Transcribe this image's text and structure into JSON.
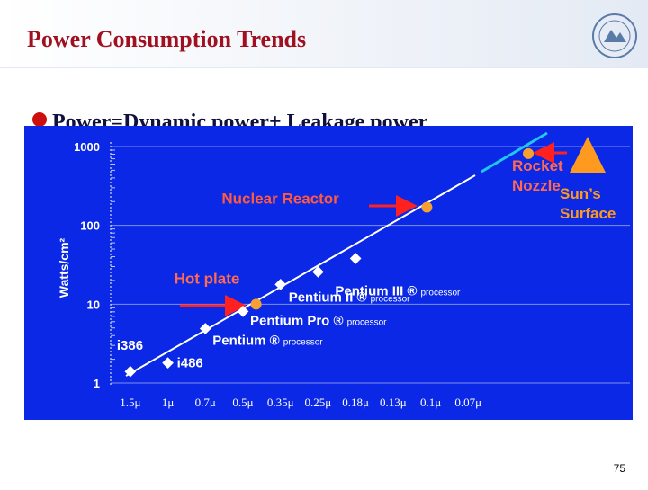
{
  "slide": {
    "title": "Power Consumption Trends",
    "bullet": "Power=Dynamic power+ Leakage power",
    "page_number": "75"
  },
  "chart_data": {
    "type": "scatter",
    "y_label": "Watts/cm²",
    "log_y": true,
    "ylim": [
      1,
      1000
    ],
    "yticks": [
      1,
      10,
      100,
      1000
    ],
    "xlim": [
      -0.5,
      13.5
    ],
    "xticks": [
      {
        "value": 0,
        "label": "1.5μ"
      },
      {
        "value": 1,
        "label": "1μ"
      },
      {
        "value": 2,
        "label": "0.7μ"
      },
      {
        "value": 3,
        "label": "0.5μ"
      },
      {
        "value": 4,
        "label": "0.35μ"
      },
      {
        "value": 5,
        "label": "0.25μ"
      },
      {
        "value": 6,
        "label": "0.18μ"
      },
      {
        "value": 7,
        "label": "0.13μ"
      },
      {
        "value": 8,
        "label": "0.1μ"
      },
      {
        "value": 9,
        "label": "0.07μ"
      }
    ],
    "grid": true,
    "processors": {
      "x": [
        0,
        1,
        2,
        3,
        4,
        5,
        6
      ],
      "values": [
        1.4,
        1.8,
        4.9,
        8.1,
        17.8,
        25.7,
        38
      ],
      "labels": [
        "i386",
        "i486",
        "Pentium ®",
        "Pentium Pro ®",
        "Pentium II ®",
        "Pentium III ®",
        null
      ],
      "label_notes": [
        null,
        null,
        "processor",
        "processor",
        "processor",
        "processor",
        null
      ],
      "color": "#ffffff"
    },
    "references": {
      "x": [
        3.35,
        7.9,
        10.6
      ],
      "values": [
        10,
        170,
        813
      ],
      "labels": [
        [
          "Hot plate"
        ],
        [
          "Nuclear Reactor"
        ],
        [
          "Rocket",
          "Nozzle"
        ]
      ],
      "color": "#f5a030"
    },
    "sun_label": [
      "Sun’s",
      "Surface"
    ]
  }
}
